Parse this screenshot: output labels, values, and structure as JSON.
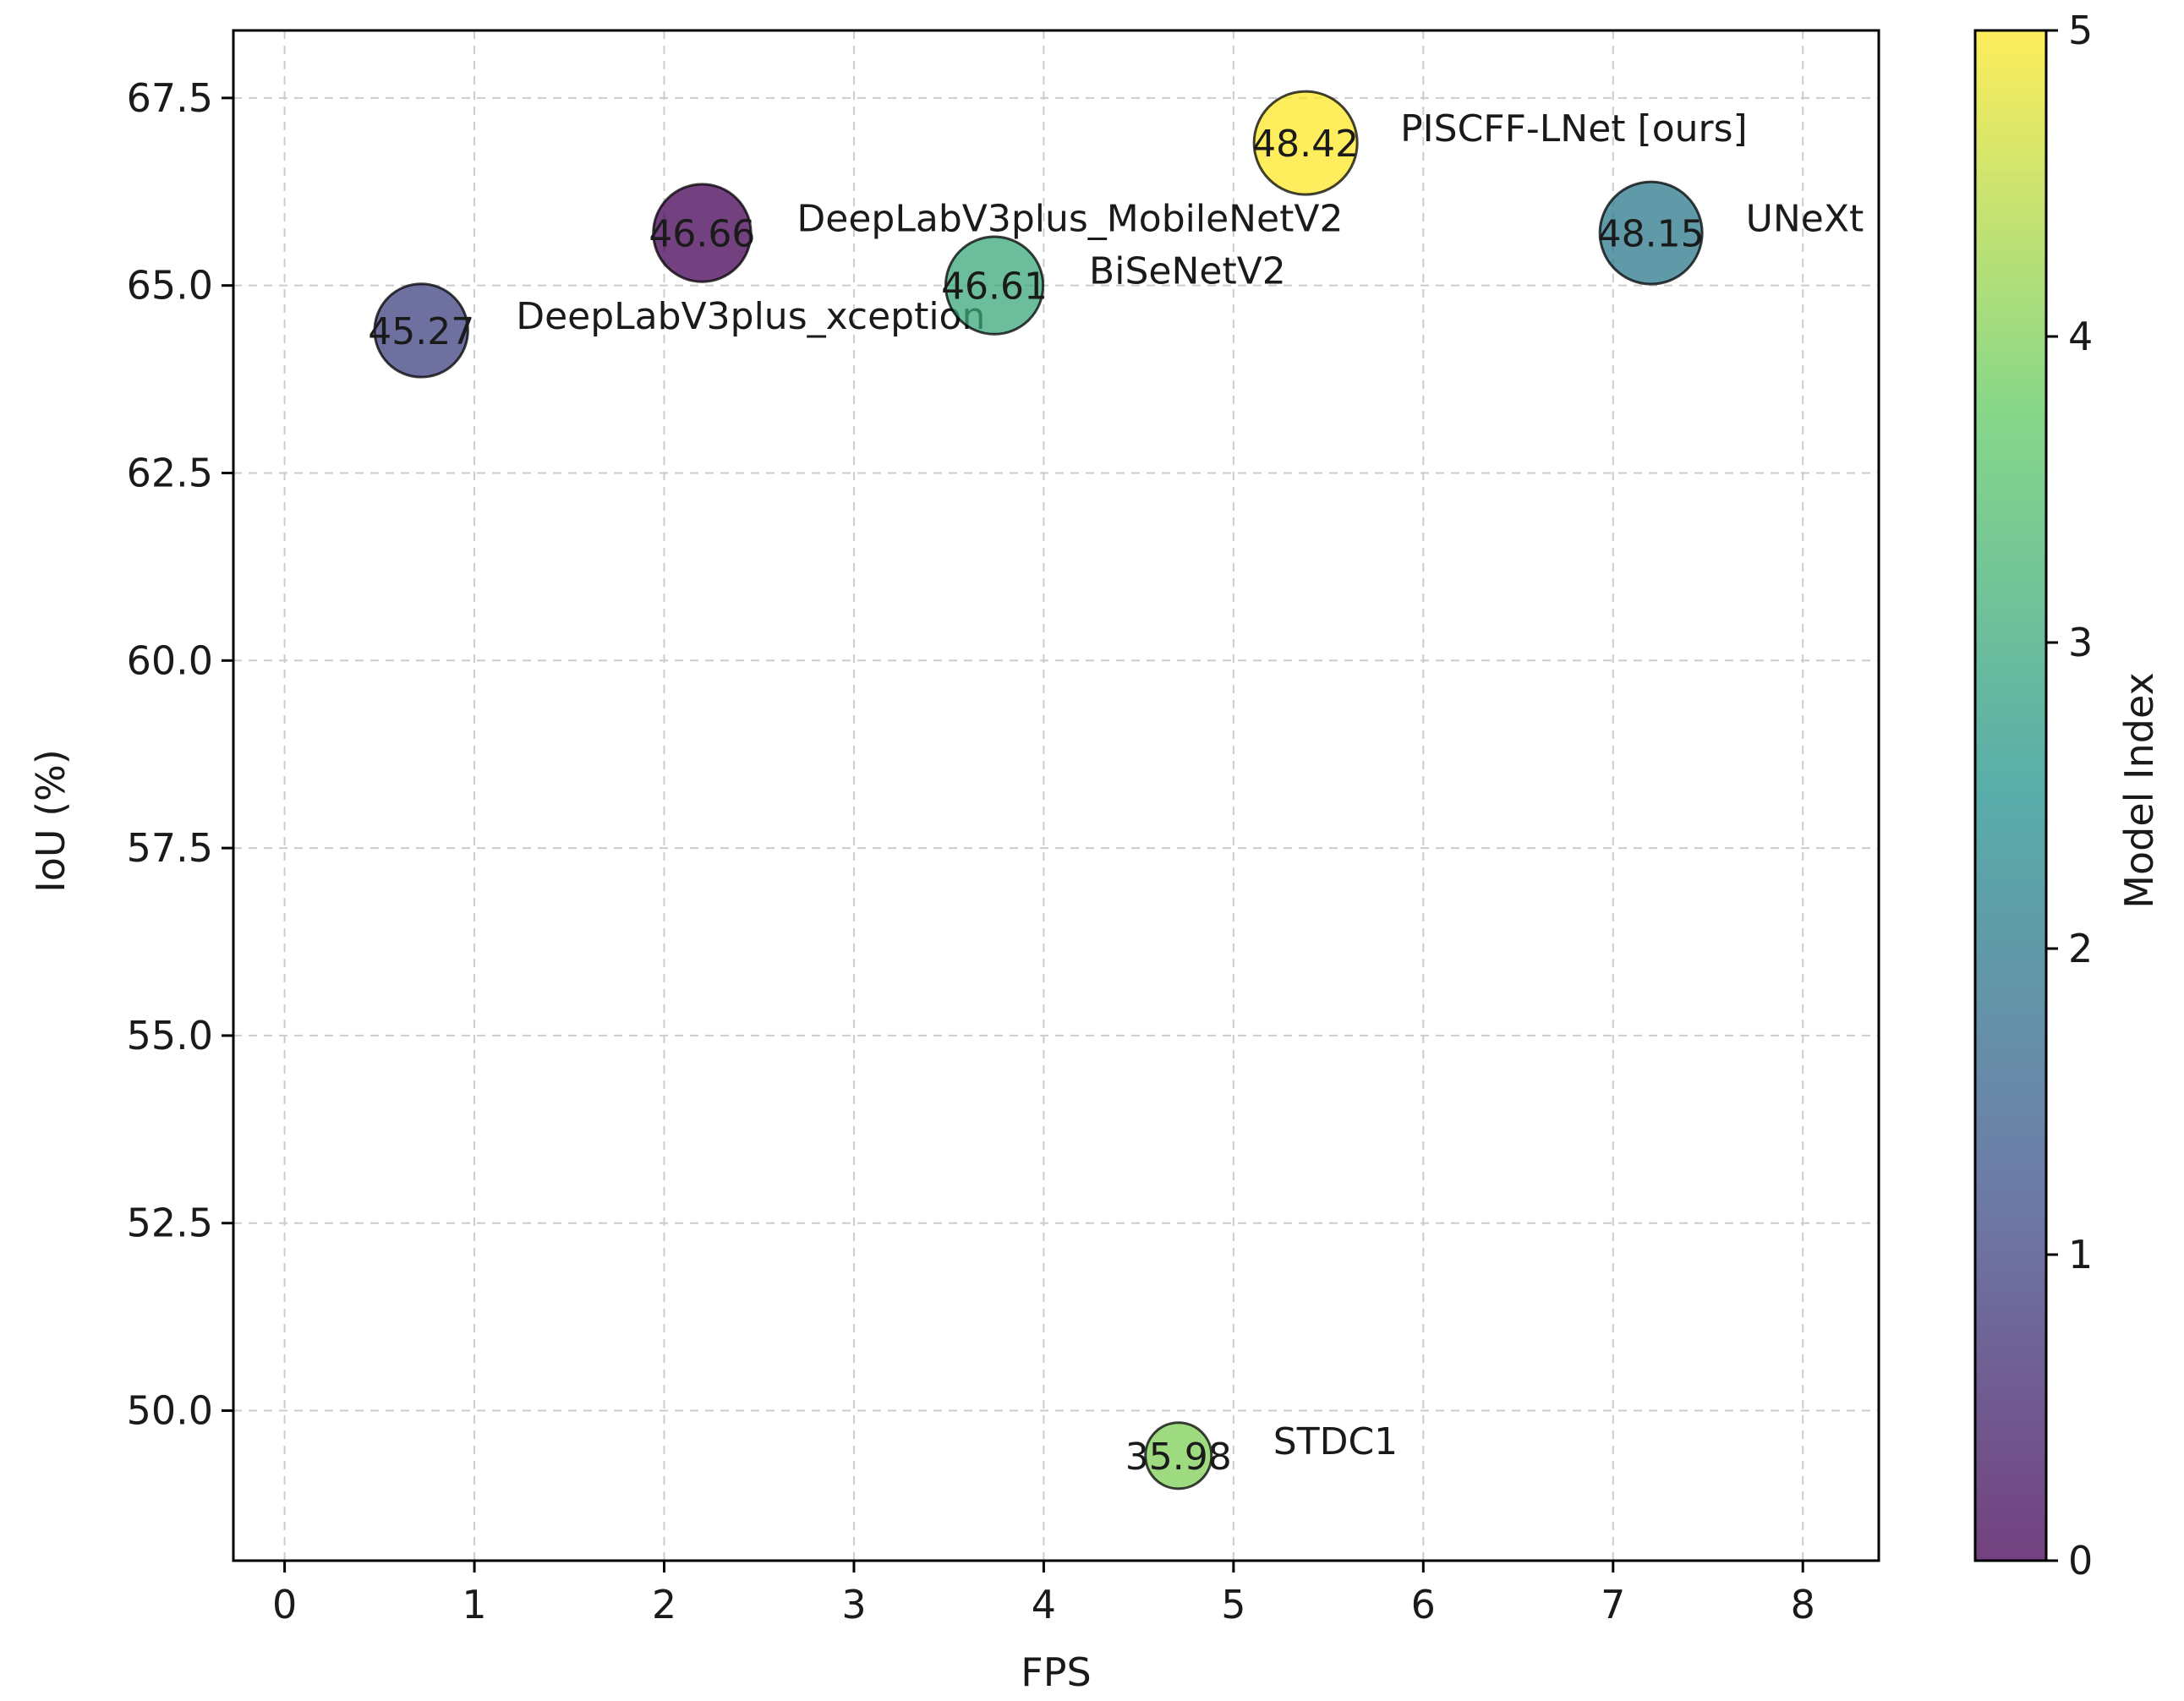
{
  "chart_data": {
    "type": "scatter",
    "subtype": "bubble",
    "xlabel": "FPS",
    "ylabel": "IoU (%)",
    "xlim": [
      -0.27,
      8.4
    ],
    "ylim": [
      48.0,
      68.4
    ],
    "xticks": [
      0,
      1,
      2,
      3,
      4,
      5,
      6,
      7,
      8
    ],
    "yticks": [
      50.0,
      52.5,
      55.0,
      57.5,
      60.0,
      62.5,
      65.0,
      67.5
    ],
    "grid": true,
    "points": [
      {
        "name": "DeepLabV3plus_MobileNetV2",
        "fps": 2.2,
        "iou": 65.7,
        "bubble_value": "46.66",
        "model_index": 0
      },
      {
        "name": "DeepLabV3plus_xception",
        "fps": 0.72,
        "iou": 64.4,
        "bubble_value": "45.27",
        "model_index": 1
      },
      {
        "name": "UNeXt",
        "fps": 7.2,
        "iou": 65.7,
        "bubble_value": "48.15",
        "model_index": 2
      },
      {
        "name": "BiSeNetV2",
        "fps": 3.74,
        "iou": 65.0,
        "bubble_value": "46.61",
        "model_index": 3
      },
      {
        "name": "STDC1",
        "fps": 4.71,
        "iou": 49.4,
        "bubble_value": "35.98",
        "model_index": 4
      },
      {
        "name": "PISCFF-LNet [ours]",
        "fps": 5.38,
        "iou": 66.9,
        "bubble_value": "48.42",
        "model_index": 5
      }
    ],
    "colorbar": {
      "label": "Model Index",
      "range": [
        0,
        5
      ],
      "ticks": [
        0,
        1,
        2,
        3,
        4,
        5
      ],
      "colormap": "viridis",
      "colors": [
        "#440154",
        "#3b528b",
        "#21918c",
        "#5ec962",
        "#fde725"
      ]
    }
  }
}
